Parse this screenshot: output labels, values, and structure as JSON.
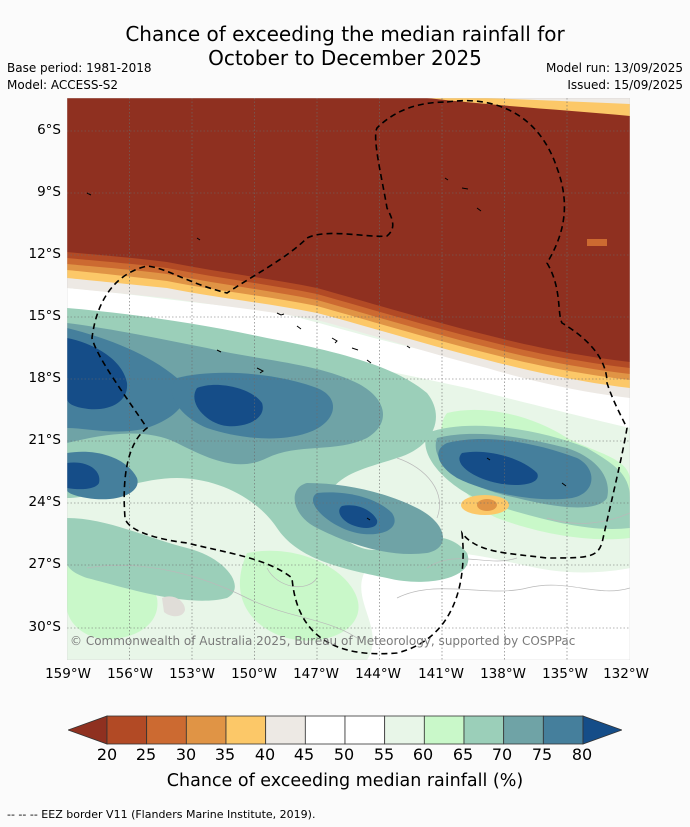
{
  "title_line1": "Chance of exceeding the median rainfall for",
  "title_line2": "October to December 2025",
  "base_period": "Base period: 1981-2018",
  "model": "Model: ACCESS-S2",
  "model_run": "Model run: 13/09/2025",
  "issued": "Issued: 15/09/2025",
  "copyright": "© Commonwealth of Australia 2025, Bureau of Meteorology, supported by COSPPac",
  "lat_labels": [
    "6°S",
    "9°S",
    "12°S",
    "15°S",
    "18°S",
    "21°S",
    "24°S",
    "27°S",
    "30°S"
  ],
  "lon_labels": [
    "159°W",
    "156°W",
    "153°W",
    "150°W",
    "147°W",
    "144°W",
    "141°W",
    "138°W",
    "135°W",
    "132°W"
  ],
  "colorbar": {
    "ticks": [
      "20",
      "25",
      "30",
      "35",
      "40",
      "45",
      "50",
      "55",
      "60",
      "65",
      "70",
      "75",
      "80"
    ],
    "colors": [
      "#8f3020",
      "#b24a25",
      "#cc6a31",
      "#e09445",
      "#fcc868",
      "#ede9e4",
      "#ffffff",
      "#ffffff",
      "#e8f6e8",
      "#c9f8c9",
      "#9bcfb9",
      "#6fa3a6",
      "#457f9c",
      "#154d88"
    ],
    "title": "Chance of exceeding median rainfall (%)"
  },
  "footnote": "--  --  -- EEZ border V11 (Flanders Marine Institute, 2019)."
}
